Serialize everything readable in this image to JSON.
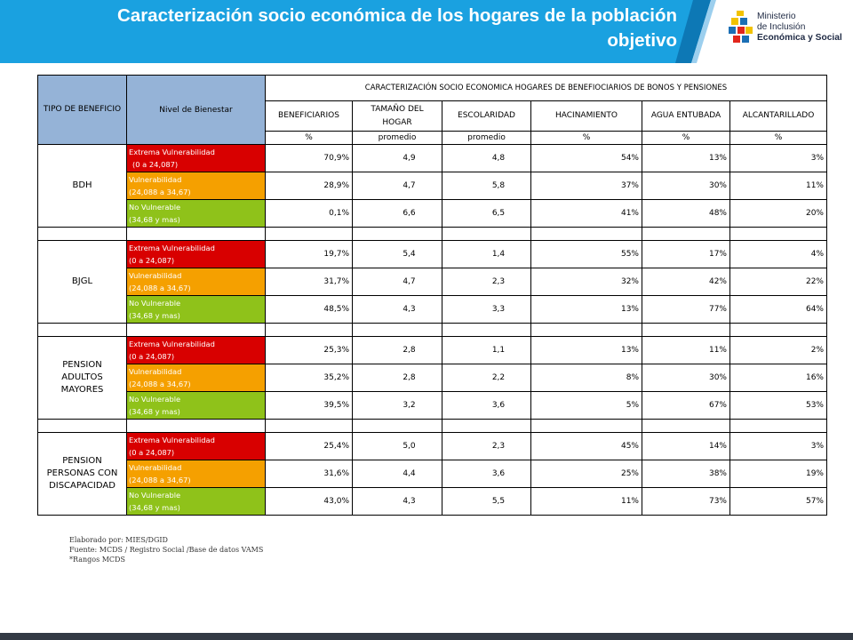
{
  "header": {
    "title_line1": "Caracterización socio económica de los hogares de la población",
    "title_line2": "objetivo",
    "colors": {
      "band": "#1aa1e0",
      "band_dark": "#0d78b5"
    }
  },
  "logo": {
    "line1": "Ministerio",
    "line2": "de Inclusión",
    "line3": "Económica y Social",
    "icon": "ministry-logo-icon"
  },
  "table": {
    "col_tipo": "TIPO DE BENEFICIO",
    "col_nivel": "Nivel de Bienestar",
    "group_header": "CARACTERIZACIÓN SOCIO ECONOMICA HOGARES DE BENEFIOCIARIOS DE BONOS Y PENSIONES",
    "columns": [
      "BENEFICIARIOS",
      "TAMAÑO DEL HOGAR",
      "ESCOLARIDAD",
      "HACINAMIENTO",
      "AGUA ENTUBADA",
      "ALCANTARILLADO"
    ],
    "units": [
      "%",
      "promedio",
      "promedio",
      "%",
      "%",
      "%"
    ],
    "levels": [
      {
        "name": "Extrema Vulnerabilidad",
        "range": "(0 a 24,087)",
        "color": "#d80000"
      },
      {
        "name": "Vulnerabilidad",
        "range": "(24,088 a 34,67)",
        "color": "#f5a000"
      },
      {
        "name": "No Vulnerable",
        "range": "(34,68 y mas)",
        "color": "#8fc21a"
      }
    ],
    "groups": [
      {
        "name": "BDH",
        "rows": [
          [
            "70,9%",
            "4,9",
            "4,8",
            "54%",
            "13%",
            "3%"
          ],
          [
            "28,9%",
            "4,7",
            "5,8",
            "37%",
            "30%",
            "11%"
          ],
          [
            "0,1%",
            "6,6",
            "6,5",
            "41%",
            "48%",
            "20%"
          ]
        ]
      },
      {
        "name": "BJGL",
        "rows": [
          [
            "19,7%",
            "5,4",
            "1,4",
            "55%",
            "17%",
            "4%"
          ],
          [
            "31,7%",
            "4,7",
            "2,3",
            "32%",
            "42%",
            "22%"
          ],
          [
            "48,5%",
            "4,3",
            "3,3",
            "13%",
            "77%",
            "64%"
          ]
        ]
      },
      {
        "name": "PENSION ADULTOS MAYORES",
        "rows": [
          [
            "25,3%",
            "2,8",
            "1,1",
            "13%",
            "11%",
            "2%"
          ],
          [
            "35,2%",
            "2,8",
            "2,2",
            "8%",
            "30%",
            "16%"
          ],
          [
            "39,5%",
            "3,2",
            "3,6",
            "5%",
            "67%",
            "53%"
          ]
        ]
      },
      {
        "name": "PENSION PERSONAS CON DISCAPACIDAD",
        "rows": [
          [
            "25,4%",
            "5,0",
            "2,3",
            "45%",
            "14%",
            "3%"
          ],
          [
            "31,6%",
            "4,4",
            "3,6",
            "25%",
            "38%",
            "19%"
          ],
          [
            "43,0%",
            "4,3",
            "5,5",
            "11%",
            "73%",
            "57%"
          ]
        ]
      }
    ]
  },
  "notes": [
    "Elaborado por: MIES/DGID",
    "Fuente: MCDS / Registro Social /Base de datos VAMS",
    "*Rangos MCDS"
  ]
}
